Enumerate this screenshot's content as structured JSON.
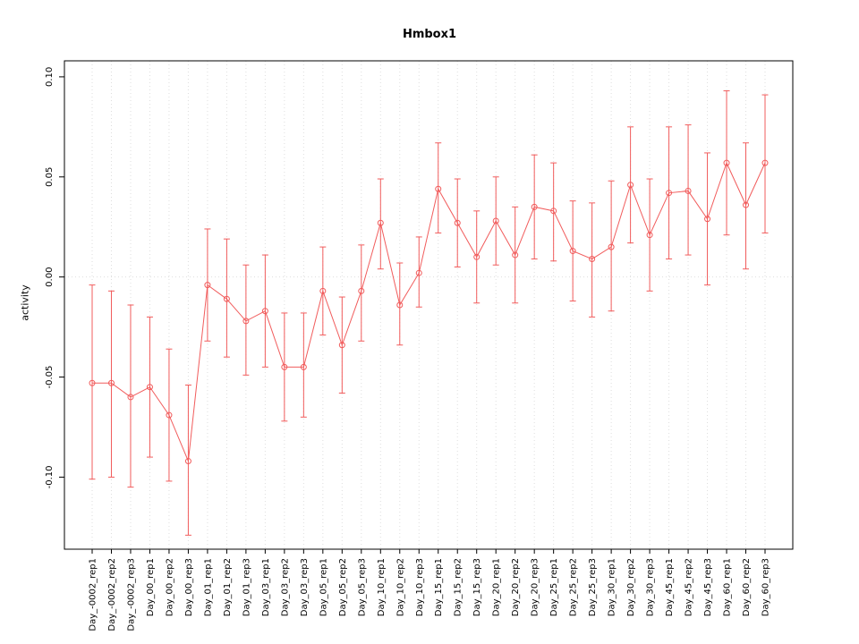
{
  "figure": {
    "title": "Hmbox1",
    "ylabel": "activity"
  },
  "chart_data": {
    "type": "line",
    "title": "Hmbox1",
    "xlabel": "",
    "ylabel": "activity",
    "grid": true,
    "legend": "none",
    "marker": "open-circle",
    "error_bars": true,
    "axis_range": [
      -0.136,
      0.108
    ],
    "y_ticks": {
      "values": [
        -0.1,
        -0.05,
        0.0,
        0.05,
        0.1
      ],
      "labels": [
        "-0.10",
        "-0.05",
        "0.00",
        "0.05",
        "0.10"
      ]
    },
    "categories": [
      "Day_-0002_rep1",
      "Day_-0002_rep2",
      "Day_-0002_rep3",
      "Day_00_rep1",
      "Day_00_rep2",
      "Day_00_rep3",
      "Day_01_rep1",
      "Day_01_rep2",
      "Day_01_rep3",
      "Day_03_rep1",
      "Day_03_rep2",
      "Day_03_rep3",
      "Day_05_rep1",
      "Day_05_rep2",
      "Day_05_rep3",
      "Day_10_rep1",
      "Day_10_rep2",
      "Day_10_rep3",
      "Day_15_rep1",
      "Day_15_rep2",
      "Day_15_rep3",
      "Day_20_rep1",
      "Day_20_rep2",
      "Day_20_rep3",
      "Day_25_rep1",
      "Day_25_rep2",
      "Day_25_rep3",
      "Day_30_rep1",
      "Day_30_rep2",
      "Day_30_rep3",
      "Day_45_rep1",
      "Day_45_rep2",
      "Day_45_rep3",
      "Day_60_rep1",
      "Day_60_rep2",
      "Day_60_rep3"
    ],
    "series": [
      {
        "name": "activity",
        "means": [
          -0.053,
          -0.053,
          -0.06,
          -0.055,
          -0.069,
          -0.092,
          -0.004,
          -0.011,
          -0.022,
          -0.017,
          -0.045,
          -0.045,
          -0.007,
          -0.034,
          -0.007,
          0.027,
          -0.014,
          0.002,
          0.044,
          0.027,
          0.01,
          0.028,
          0.011,
          0.035,
          0.033,
          0.013,
          0.009,
          0.015,
          0.046,
          0.021,
          0.042,
          0.043,
          0.029,
          0.057,
          0.036,
          0.057
        ],
        "lower": [
          -0.101,
          -0.1,
          -0.105,
          -0.09,
          -0.102,
          -0.129,
          -0.032,
          -0.04,
          -0.049,
          -0.045,
          -0.072,
          -0.07,
          -0.029,
          -0.058,
          -0.032,
          0.004,
          -0.034,
          -0.015,
          0.022,
          0.005,
          -0.013,
          0.006,
          -0.013,
          0.009,
          0.008,
          -0.012,
          -0.02,
          -0.017,
          0.017,
          -0.007,
          0.009,
          0.011,
          -0.004,
          0.021,
          0.004,
          0.022
        ],
        "upper": [
          -0.004,
          -0.007,
          -0.014,
          -0.02,
          -0.036,
          -0.054,
          0.024,
          0.019,
          0.006,
          0.011,
          -0.018,
          -0.018,
          0.015,
          -0.01,
          0.016,
          0.049,
          0.007,
          0.02,
          0.067,
          0.049,
          0.033,
          0.05,
          0.035,
          0.061,
          0.057,
          0.038,
          0.037,
          0.048,
          0.075,
          0.049,
          0.075,
          0.076,
          0.062,
          0.093,
          0.067,
          0.091
        ]
      }
    ],
    "colors": {
      "series": "#f15c5c",
      "grid": "#dedede",
      "zero_line": "#dedede",
      "axis": "#000000",
      "tick_text": "#000000"
    }
  }
}
